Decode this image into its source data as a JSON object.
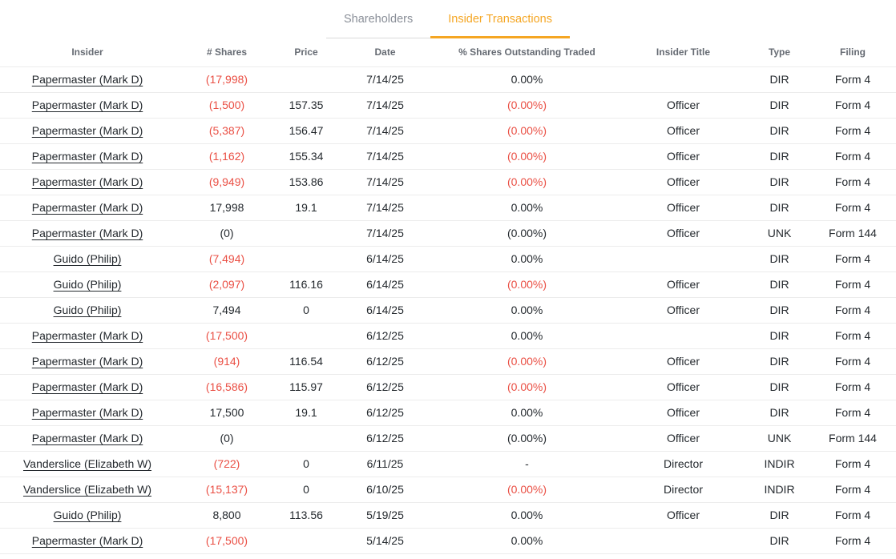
{
  "colors": {
    "accent_orange": "#f5a623",
    "negative_red": "#ea4f44",
    "text_dark": "#24292e",
    "tab_inactive_gray": "#8a8f98"
  },
  "tabs": [
    {
      "label": "Shareholders",
      "active": false
    },
    {
      "label": "Insider Transactions",
      "active": true
    }
  ],
  "table": {
    "columns": [
      "Insider",
      "# Shares",
      "Price",
      "Date",
      "% Shares Outstanding Traded",
      "Insider Title",
      "Type",
      "Filing"
    ],
    "rows": [
      {
        "insider": "Papermaster (Mark D)",
        "shares": "(17,998)",
        "shares_negative": true,
        "price": "",
        "date": "7/14/25",
        "pct_traded": "0.00%",
        "pct_negative": false,
        "insider_title": "",
        "type": "DIR",
        "filing": "Form 4"
      },
      {
        "insider": "Papermaster (Mark D)",
        "shares": "(1,500)",
        "shares_negative": true,
        "price": "157.35",
        "date": "7/14/25",
        "pct_traded": "(0.00%)",
        "pct_negative": true,
        "insider_title": "Officer",
        "type": "DIR",
        "filing": "Form 4"
      },
      {
        "insider": "Papermaster (Mark D)",
        "shares": "(5,387)",
        "shares_negative": true,
        "price": "156.47",
        "date": "7/14/25",
        "pct_traded": "(0.00%)",
        "pct_negative": true,
        "insider_title": "Officer",
        "type": "DIR",
        "filing": "Form 4"
      },
      {
        "insider": "Papermaster (Mark D)",
        "shares": "(1,162)",
        "shares_negative": true,
        "price": "155.34",
        "date": "7/14/25",
        "pct_traded": "(0.00%)",
        "pct_negative": true,
        "insider_title": "Officer",
        "type": "DIR",
        "filing": "Form 4"
      },
      {
        "insider": "Papermaster (Mark D)",
        "shares": "(9,949)",
        "shares_negative": true,
        "price": "153.86",
        "date": "7/14/25",
        "pct_traded": "(0.00%)",
        "pct_negative": true,
        "insider_title": "Officer",
        "type": "DIR",
        "filing": "Form 4"
      },
      {
        "insider": "Papermaster (Mark D)",
        "shares": "17,998",
        "shares_negative": false,
        "price": "19.1",
        "date": "7/14/25",
        "pct_traded": "0.00%",
        "pct_negative": false,
        "insider_title": "Officer",
        "type": "DIR",
        "filing": "Form 4"
      },
      {
        "insider": "Papermaster (Mark D)",
        "shares": "(0)",
        "shares_negative": false,
        "price": "",
        "date": "7/14/25",
        "pct_traded": "(0.00%)",
        "pct_negative": false,
        "insider_title": "Officer",
        "type": "UNK",
        "filing": "Form 144"
      },
      {
        "insider": "Guido (Philip)",
        "shares": "(7,494)",
        "shares_negative": true,
        "price": "",
        "date": "6/14/25",
        "pct_traded": "0.00%",
        "pct_negative": false,
        "insider_title": "",
        "type": "DIR",
        "filing": "Form 4"
      },
      {
        "insider": "Guido (Philip)",
        "shares": "(2,097)",
        "shares_negative": true,
        "price": "116.16",
        "date": "6/14/25",
        "pct_traded": "(0.00%)",
        "pct_negative": true,
        "insider_title": "Officer",
        "type": "DIR",
        "filing": "Form 4"
      },
      {
        "insider": "Guido (Philip)",
        "shares": "7,494",
        "shares_negative": false,
        "price": "0",
        "date": "6/14/25",
        "pct_traded": "0.00%",
        "pct_negative": false,
        "insider_title": "Officer",
        "type": "DIR",
        "filing": "Form 4"
      },
      {
        "insider": "Papermaster (Mark D)",
        "shares": "(17,500)",
        "shares_negative": true,
        "price": "",
        "date": "6/12/25",
        "pct_traded": "0.00%",
        "pct_negative": false,
        "insider_title": "",
        "type": "DIR",
        "filing": "Form 4"
      },
      {
        "insider": "Papermaster (Mark D)",
        "shares": "(914)",
        "shares_negative": true,
        "price": "116.54",
        "date": "6/12/25",
        "pct_traded": "(0.00%)",
        "pct_negative": true,
        "insider_title": "Officer",
        "type": "DIR",
        "filing": "Form 4"
      },
      {
        "insider": "Papermaster (Mark D)",
        "shares": "(16,586)",
        "shares_negative": true,
        "price": "115.97",
        "date": "6/12/25",
        "pct_traded": "(0.00%)",
        "pct_negative": true,
        "insider_title": "Officer",
        "type": "DIR",
        "filing": "Form 4"
      },
      {
        "insider": "Papermaster (Mark D)",
        "shares": "17,500",
        "shares_negative": false,
        "price": "19.1",
        "date": "6/12/25",
        "pct_traded": "0.00%",
        "pct_negative": false,
        "insider_title": "Officer",
        "type": "DIR",
        "filing": "Form 4"
      },
      {
        "insider": "Papermaster (Mark D)",
        "shares": "(0)",
        "shares_negative": false,
        "price": "",
        "date": "6/12/25",
        "pct_traded": "(0.00%)",
        "pct_negative": false,
        "insider_title": "Officer",
        "type": "UNK",
        "filing": "Form 144"
      },
      {
        "insider": "Vanderslice (Elizabeth W)",
        "shares": "(722)",
        "shares_negative": true,
        "price": "0",
        "date": "6/11/25",
        "pct_traded": "-",
        "pct_negative": false,
        "insider_title": "Director",
        "type": "INDIR",
        "filing": "Form 4"
      },
      {
        "insider": "Vanderslice (Elizabeth W)",
        "shares": "(15,137)",
        "shares_negative": true,
        "price": "0",
        "date": "6/10/25",
        "pct_traded": "(0.00%)",
        "pct_negative": true,
        "insider_title": "Director",
        "type": "INDIR",
        "filing": "Form 4"
      },
      {
        "insider": "Guido (Philip)",
        "shares": "8,800",
        "shares_negative": false,
        "price": "113.56",
        "date": "5/19/25",
        "pct_traded": "0.00%",
        "pct_negative": false,
        "insider_title": "Officer",
        "type": "DIR",
        "filing": "Form 4"
      },
      {
        "insider": "Papermaster (Mark D)",
        "shares": "(17,500)",
        "shares_negative": true,
        "price": "",
        "date": "5/14/25",
        "pct_traded": "0.00%",
        "pct_negative": false,
        "insider_title": "",
        "type": "DIR",
        "filing": "Form 4"
      }
    ]
  }
}
